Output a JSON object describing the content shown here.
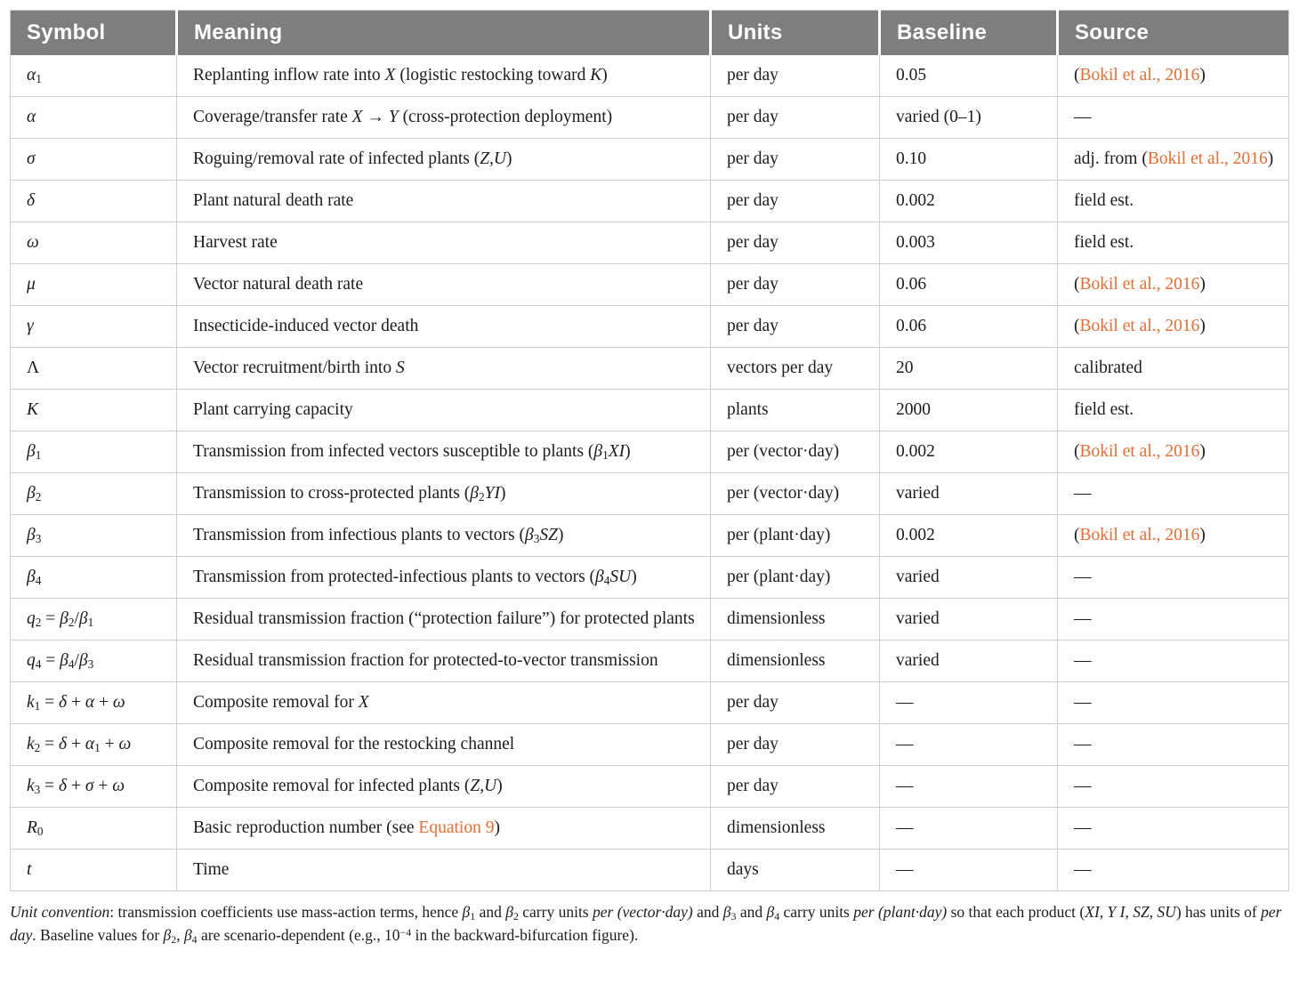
{
  "accent_color": "#ed6b2c",
  "header_bg": "#7e7e7e",
  "table": {
    "columns": [
      {
        "key": "symbol",
        "label": "Symbol"
      },
      {
        "key": "meaning",
        "label": "Meaning"
      },
      {
        "key": "units",
        "label": "Units"
      },
      {
        "key": "baseline",
        "label": "Baseline"
      },
      {
        "key": "source",
        "label": "Source"
      }
    ],
    "rows": [
      {
        "symbol": "<i>α</i><sub>1</sub>",
        "meaning": "Replanting inflow rate into <i>X</i> (logistic restocking toward <i>K</i>)",
        "units": "per day",
        "baseline": "0.05",
        "source": "(<span class=\"link\">Bokil et al., 2016</span>)"
      },
      {
        "symbol": "<i>α</i>",
        "meaning": "Coverage/transfer rate <i>X</i> → <i>Y</i> (cross-protection deployment)",
        "units": "per day",
        "baseline": "varied (0–1)",
        "source": "—"
      },
      {
        "symbol": "<i>σ</i>",
        "meaning": "Roguing/removal rate of infected plants (<i>Z,U</i>)",
        "units": "per day",
        "baseline": "0.10",
        "source": "adj. from (<span class=\"link\">Bokil et al., 2016</span>)"
      },
      {
        "symbol": "<i>δ</i>",
        "meaning": "Plant natural death rate",
        "units": "per day",
        "baseline": "0.002",
        "source": "field est."
      },
      {
        "symbol": "<i>ω</i>",
        "meaning": "Harvest rate",
        "units": "per day",
        "baseline": "0.003",
        "source": "field est."
      },
      {
        "symbol": "<i>μ</i>",
        "meaning": "Vector natural death rate",
        "units": "per day",
        "baseline": "0.06",
        "source": "(<span class=\"link\">Bokil et al., 2016</span>)"
      },
      {
        "symbol": "<i>γ</i>",
        "meaning": "Insecticide-induced vector death",
        "units": "per day",
        "baseline": "0.06",
        "source": "(<span class=\"link\">Bokil et al., 2016</span>)"
      },
      {
        "symbol": "Λ",
        "meaning": "Vector recruitment/birth into <i>S</i>",
        "units": "vectors per day",
        "baseline": "20",
        "source": "calibrated"
      },
      {
        "symbol": "<i>K</i>",
        "meaning": "Plant carrying capacity",
        "units": "plants",
        "baseline": "2000",
        "source": "field est."
      },
      {
        "symbol": "<i>β</i><sub>1</sub>",
        "meaning": "Transmission from infected vectors susceptible to plants (<i>β</i><sub>1</sub><i>XI</i>)",
        "units": "per (vector·day)",
        "baseline": "0.002",
        "source": "(<span class=\"link\">Bokil et al., 2016</span>)"
      },
      {
        "symbol": "<i>β</i><sub>2</sub>",
        "meaning": "Transmission to cross-protected plants (<i>β</i><sub>2</sub><i>YI</i>)",
        "units": "per (vector·day)",
        "baseline": "varied",
        "source": "—"
      },
      {
        "symbol": "<i>β</i><sub>3</sub>",
        "meaning": "Transmission from infectious plants to vectors (<i>β</i><sub>3</sub><i>SZ</i>)",
        "units": "per (plant·day)",
        "baseline": "0.002",
        "source": "(<span class=\"link\">Bokil et al., 2016</span>)"
      },
      {
        "symbol": "<i>β</i><sub>4</sub>",
        "meaning": "Transmission from protected-infectious plants to vectors (<i>β</i><sub>4</sub><i>SU</i>)",
        "units": "per (plant·day)",
        "baseline": "varied",
        "source": "—"
      },
      {
        "symbol": "<i>q</i><sub>2</sub> = <i>β</i><sub>2</sub>/<i>β</i><sub>1</sub>",
        "meaning": "Residual transmission fraction (“protection failure”) for protected plants",
        "units": "dimensionless",
        "baseline": "varied",
        "source": "—"
      },
      {
        "symbol": "<i>q</i><sub>4</sub> = <i>β</i><sub>4</sub>/<i>β</i><sub>3</sub>",
        "meaning": "Residual transmission fraction for protected-to-vector transmission",
        "units": "dimensionless",
        "baseline": "varied",
        "source": "—"
      },
      {
        "symbol": "<i>k</i><sub>1</sub> = <i>δ</i> + <i>α</i> + <i>ω</i>",
        "meaning": "Composite removal for <i>X</i>",
        "units": "per day",
        "baseline": "—",
        "source": "—"
      },
      {
        "symbol": "<i>k</i><sub>2</sub> = <i>δ</i> + <i>α</i><sub>1</sub> + <i>ω</i>",
        "meaning": "Composite removal for the restocking channel",
        "units": "per day",
        "baseline": "—",
        "source": "—"
      },
      {
        "symbol": "<i>k</i><sub>3</sub> = <i>δ</i> + <i>σ</i> + <i>ω</i>",
        "meaning": "Composite removal for infected plants (<i>Z,U</i>)",
        "units": "per day",
        "baseline": "—",
        "source": "—"
      },
      {
        "symbol": "<i>R</i><sub>0</sub>",
        "meaning": "Basic reproduction number (see <span class=\"link\">Equation 9</span>)",
        "units": "dimensionless",
        "baseline": "—",
        "source": "—"
      },
      {
        "symbol": "<i>t</i>",
        "meaning": "Time",
        "units": "days",
        "baseline": "—",
        "source": "—"
      }
    ]
  },
  "footnote_html": "<i>Unit convention</i>: transmission coefficients use mass-action terms, hence <i>β</i><sub>1</sub> and <i>β</i><sub>2</sub> carry units <i>per (vector·day)</i> and <i>β</i><sub>3</sub> and <i>β</i><sub>4</sub> carry units <i>per (plant·day)</i> so that each product (<i>XI, Y I, SZ, SU</i>) has units of <i>per day</i>. Baseline values for <i>β</i><sub>2</sub>, <i>β</i><sub>4</sub> are scenario-dependent (e.g., 10<sup>−4</sup> in the backward-bifurcation figure)."
}
